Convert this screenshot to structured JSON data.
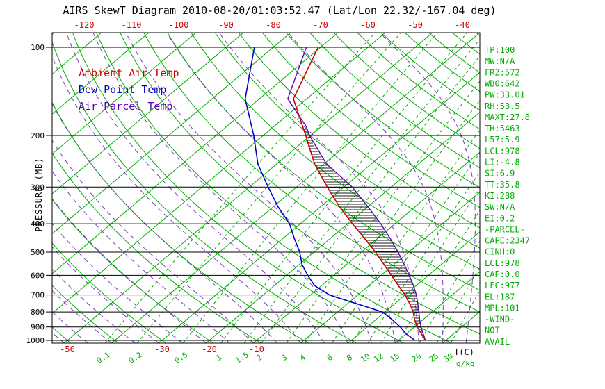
{
  "title": "AIRS SkewT Diagram 2010-08-20/01:03:52.47 (Lat/Lon 22.32/-167.04 deg)",
  "colors": {
    "ambient": "#CC0000",
    "dewpoint": "#0000CC",
    "parcel": "#5C00B8",
    "moist_adiabat": "#7A3DBE",
    "grid_green": "#00AC00",
    "axis_black": "#000000"
  },
  "legend": {
    "items": [
      {
        "label": "Ambient Air Temp",
        "color": "ambient"
      },
      {
        "label": "Dew Point Temp",
        "color": "dewpoint"
      },
      {
        "label": "Air Parcel Temp",
        "color": "parcel"
      }
    ]
  },
  "axes": {
    "pressure_axis_label": "PRESSURE (MB)",
    "pressure_ticks": [
      100,
      200,
      300,
      400,
      500,
      600,
      700,
      800,
      900,
      1000
    ],
    "top_temp_ticks": [
      -120,
      -110,
      -100,
      -90,
      -80,
      -70,
      -60,
      -50,
      -40
    ],
    "bottom_temp_ticks": [
      -50,
      -30,
      -20,
      -10
    ],
    "mixing_ratio_ticks": [
      0.1,
      0.2,
      0.5,
      1,
      1.5,
      2,
      3,
      4,
      6,
      8,
      10,
      12,
      15,
      20,
      25,
      30
    ],
    "temp_unit_label": "T(C)",
    "mixing_unit_label": "g/kg"
  },
  "stats_panel": {
    "lines": [
      "TP:100",
      "MW:N/A",
      "FRZ:572",
      "WB0:642",
      "PW:33.01",
      "RH:53.5",
      "MAXT:27.8",
      "TH:5463",
      "L57:5.9",
      "LCL:978",
      "LI:-4.8",
      "SI:6.9",
      "TT:35.8",
      "KI:288",
      "SW:N/A",
      "EI:0.2",
      "-PARCEL-",
      "CAPE:2347",
      "CINH:0",
      "LCL:978",
      "CAP:0.0",
      "LFC:977",
      "EL:187",
      "MPL:101",
      "-WIND-",
      "NOT",
      "AVAIL"
    ]
  },
  "chart_data": {
    "type": "line",
    "variant": "skew-t-log-p",
    "title": "AIRS SkewT Diagram 2010-08-20/01:03:52.47 (Lat/Lon 22.32/-167.04 deg)",
    "xlabel": "T(C)",
    "ylabel": "PRESSURE (MB)",
    "pressure_scale": "log",
    "pressure_range_mb": [
      100,
      1000
    ],
    "top_axis_temp_range_c": [
      -120,
      -40
    ],
    "isotherm_step_c": 10,
    "dry_adiabat_step_c": 10,
    "moist_adiabat_step_c": 5,
    "cape_pressure_range": [
      960,
      187
    ],
    "series": [
      {
        "name": "Ambient Air Temp",
        "color_key": "ambient",
        "points": [
          [
            1000,
            25.8
          ],
          [
            950,
            23.2
          ],
          [
            900,
            20.6
          ],
          [
            850,
            18.2
          ],
          [
            800,
            16.0
          ],
          [
            750,
            13.2
          ],
          [
            700,
            10.0
          ],
          [
            650,
            6.2
          ],
          [
            600,
            2.2
          ],
          [
            550,
            -2.2
          ],
          [
            500,
            -7.0
          ],
          [
            450,
            -12.6
          ],
          [
            400,
            -19.0
          ],
          [
            350,
            -26.0
          ],
          [
            300,
            -33.5
          ],
          [
            250,
            -42.0
          ],
          [
            200,
            -51.0
          ],
          [
            150,
            -62.8
          ],
          [
            100,
            -70.5
          ]
        ]
      },
      {
        "name": "Dew Point Temp",
        "color_key": "dewpoint",
        "points": [
          [
            1000,
            23.5
          ],
          [
            950,
            20.0
          ],
          [
            900,
            17.0
          ],
          [
            850,
            13.5
          ],
          [
            800,
            9.5
          ],
          [
            750,
            2.0
          ],
          [
            700,
            -6.0
          ],
          [
            650,
            -11.5
          ],
          [
            600,
            -15.5
          ],
          [
            550,
            -19.5
          ],
          [
            500,
            -23.0
          ],
          [
            450,
            -27.5
          ],
          [
            400,
            -32.3
          ],
          [
            350,
            -39.0
          ],
          [
            300,
            -46.0
          ],
          [
            250,
            -54.0
          ],
          [
            200,
            -62.0
          ],
          [
            150,
            -73.0
          ],
          [
            100,
            -84.0
          ]
        ]
      },
      {
        "name": "Air Parcel Temp",
        "color_key": "parcel",
        "points": [
          [
            1000,
            25.5
          ],
          [
            978,
            24.8
          ],
          [
            950,
            23.6
          ],
          [
            900,
            21.4
          ],
          [
            850,
            19.3
          ],
          [
            800,
            17.2
          ],
          [
            750,
            14.9
          ],
          [
            700,
            12.4
          ],
          [
            650,
            9.4
          ],
          [
            600,
            6.0
          ],
          [
            550,
            2.1
          ],
          [
            500,
            -2.2
          ],
          [
            450,
            -7.2
          ],
          [
            400,
            -13.0
          ],
          [
            350,
            -20.0
          ],
          [
            300,
            -28.2
          ],
          [
            250,
            -39.5
          ],
          [
            200,
            -50.2
          ],
          [
            187,
            -53.0
          ],
          [
            150,
            -64.0
          ],
          [
            100,
            -73.0
          ]
        ]
      }
    ]
  }
}
